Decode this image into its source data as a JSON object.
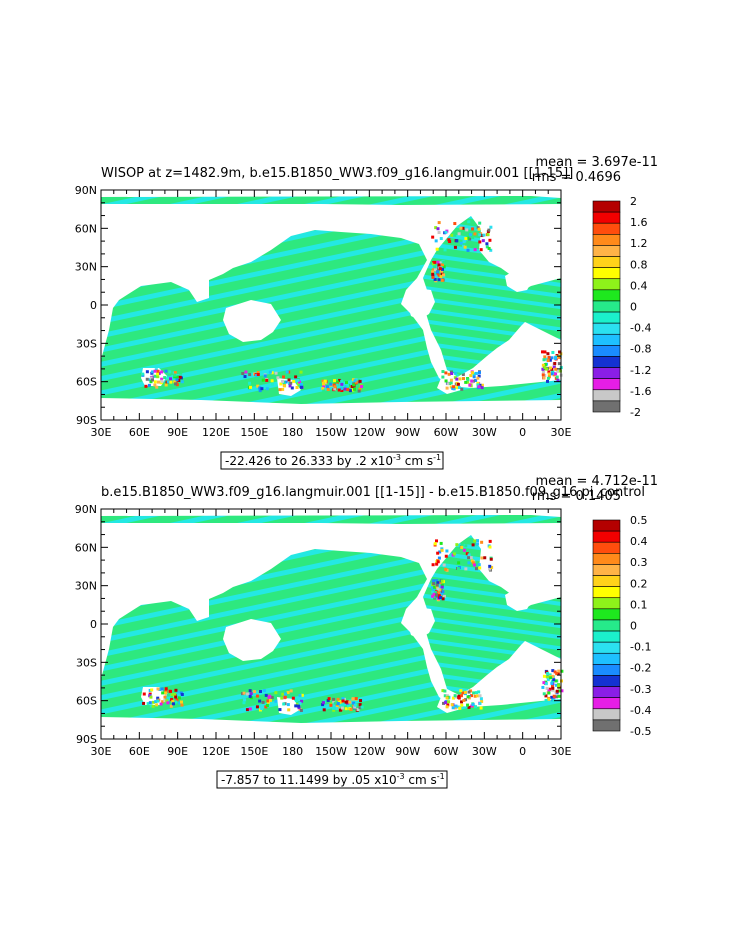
{
  "colors": {
    "land": "#ffffff",
    "frame": "#000000",
    "ocean_main": "#2ee87f",
    "ocean_alt": "#24e8e3"
  },
  "chart_data": [
    {
      "type": "heatmap",
      "title": "WISOP at z=1482.9m, b.e15.B1850_WW3.f09_g16.langmuir.001 [[1-15]]",
      "stat_mean": "mean = 3.697e-11",
      "stat_rms": "rms = 0.4696",
      "range_label": "-22.426 to 26.333 by .2 x10",
      "range_exp": "-3",
      "range_units": " cm s",
      "range_units_exp": "-1",
      "lat_ticks": [
        "90N",
        "60N",
        "30N",
        "0",
        "30S",
        "60S",
        "90S"
      ],
      "lon_ticks": [
        "30E",
        "60E",
        "90E",
        "120E",
        "150E",
        "180",
        "150W",
        "120W",
        "90W",
        "60W",
        "30W",
        "0",
        "30E"
      ],
      "colorbar": {
        "labels": [
          "2",
          "1.6",
          "1.2",
          "0.8",
          "0.4",
          "0",
          "-0.4",
          "-0.8",
          "-1.2",
          "-1.6",
          "-2"
        ],
        "colors": [
          "#b40000",
          "#f20000",
          "#ff4d0d",
          "#ff8a1a",
          "#ffb347",
          "#ffd21a",
          "#ffff00",
          "#8ef21a",
          "#1ee81e",
          "#26ea8a",
          "#1bf0cc",
          "#2be0f0",
          "#1ec0ff",
          "#1a8cff",
          "#1432d2",
          "#8a1ee6",
          "#e61ee6",
          "#c8c8c8",
          "#707070"
        ]
      },
      "lon_range": [
        30,
        390
      ],
      "lat_range": [
        -90,
        90
      ]
    },
    {
      "type": "heatmap",
      "title": "b.e15.B1850_WW3.f09_g16.langmuir.001 [[1-15]] - b.e15.B1850.f09_g16.pi_control",
      "stat_mean": "mean = 4.712e-11",
      "stat_rms": "rms = 0.1405",
      "range_label": "-7.857 to 11.1499 by .05 x10",
      "range_exp": "-3",
      "range_units": " cm s",
      "range_units_exp": "-1",
      "lat_ticks": [
        "90N",
        "60N",
        "30N",
        "0",
        "30S",
        "60S",
        "90S"
      ],
      "lon_ticks": [
        "30E",
        "60E",
        "90E",
        "120E",
        "150E",
        "180",
        "150W",
        "120W",
        "90W",
        "60W",
        "30W",
        "0",
        "30E"
      ],
      "colorbar": {
        "labels": [
          "0.5",
          "0.4",
          "0.3",
          "0.2",
          "0.1",
          "0",
          "-0.1",
          "-0.2",
          "-0.3",
          "-0.4",
          "-0.5"
        ],
        "colors": [
          "#b40000",
          "#f20000",
          "#ff4d0d",
          "#ff8a1a",
          "#ffb347",
          "#ffd21a",
          "#ffff00",
          "#8ef21a",
          "#1ee81e",
          "#26ea8a",
          "#1bf0cc",
          "#2be0f0",
          "#1ec0ff",
          "#1a8cff",
          "#1432d2",
          "#8a1ee6",
          "#e61ee6",
          "#c8c8c8",
          "#707070"
        ]
      },
      "lon_range": [
        30,
        390
      ],
      "lat_range": [
        -90,
        90
      ]
    }
  ]
}
